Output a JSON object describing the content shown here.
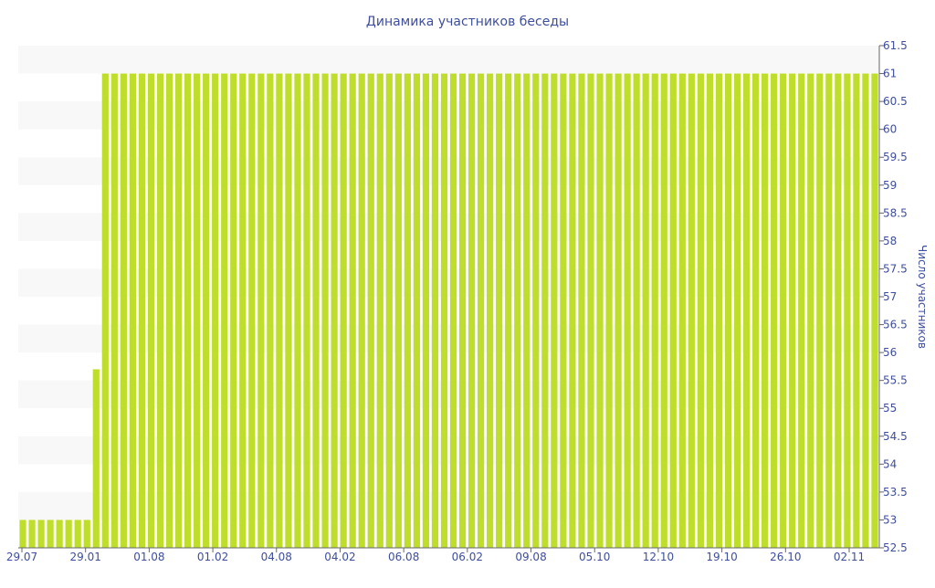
{
  "chart_data": {
    "type": "bar",
    "title": "Динамика участников беседы",
    "ylabel": "Число участников",
    "xlabel": "",
    "ylim": [
      52.5,
      61.5
    ],
    "y_ticks": [
      "52.5",
      "53",
      "53.5",
      "54",
      "54.5",
      "55",
      "55.5",
      "56",
      "56.5",
      "57",
      "57.5",
      "58",
      "58.5",
      "59",
      "59.5",
      "60",
      "60.5",
      "61",
      "61.5"
    ],
    "x_tick_labels": [
      "29.07",
      "29.01",
      "01.08",
      "01.02",
      "04.08",
      "04.02",
      "06.08",
      "06.02",
      "09.08",
      "05.10",
      "12.10",
      "19.10",
      "26.10",
      "02.11"
    ],
    "grid": "alternating horizontal bands",
    "legend": "none",
    "series": [
      {
        "values": [
          53,
          53,
          53,
          53,
          53,
          53,
          53,
          53,
          55.7,
          61,
          61,
          61,
          61,
          61,
          61,
          61,
          61,
          61,
          61,
          61,
          61,
          61,
          61,
          61,
          61,
          61,
          61,
          61,
          61,
          61,
          61,
          61,
          61,
          61,
          61,
          61,
          61,
          61,
          61,
          61,
          61,
          61,
          61,
          61,
          61,
          61,
          61,
          61,
          61,
          61,
          61,
          61,
          61,
          61,
          61,
          61,
          61,
          61,
          61,
          61,
          61,
          61,
          61,
          61,
          61,
          61,
          61,
          61,
          61,
          61,
          61,
          61,
          61,
          61,
          61,
          61,
          61,
          61,
          61,
          61,
          61,
          61,
          61,
          61,
          61,
          61,
          61,
          61,
          61,
          61,
          61,
          61,
          61,
          61
        ]
      }
    ],
    "colors": {
      "bar": "#bfde2c",
      "band": "#f8f8f8",
      "text": "#3e4e9c",
      "axis": "#666666"
    }
  }
}
